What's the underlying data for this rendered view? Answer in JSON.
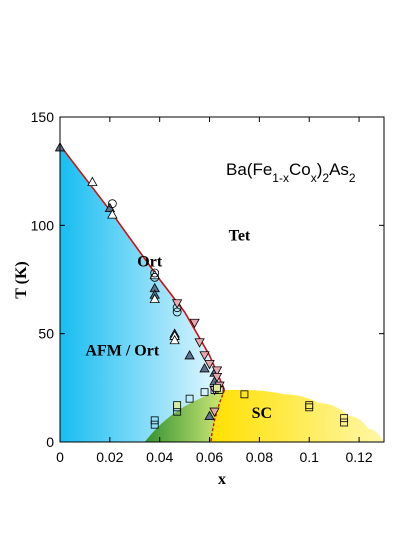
{
  "chart_data": {
    "type": "scatter",
    "title": "",
    "xlabel": "x",
    "ylabel": "T (K)",
    "xlim": [
      0,
      0.13
    ],
    "ylim": [
      0,
      150
    ],
    "x_ticks": [
      0,
      0.02,
      0.04,
      0.06,
      0.08,
      0.1,
      0.12
    ],
    "x_tick_labels": [
      "0",
      "0.02",
      "0.04",
      "0.06",
      "0.08",
      "0.1",
      "0.12"
    ],
    "y_ticks": [
      0,
      50,
      100,
      150
    ],
    "y_tick_labels": [
      "0",
      "50",
      "100",
      "150"
    ],
    "grid": false,
    "formula": {
      "parts": [
        {
          "t": "Ba(Fe",
          "s": "normal"
        },
        {
          "t": "1-x",
          "s": "sub"
        },
        {
          "t": "Co",
          "s": "normal"
        },
        {
          "t": "x",
          "s": "sub"
        },
        {
          "t": ")",
          "s": "normal"
        },
        {
          "t": "2",
          "s": "sub"
        },
        {
          "t": "As",
          "s": "normal"
        },
        {
          "t": "2",
          "s": "sub"
        }
      ]
    },
    "region_labels": [
      {
        "text": "Tet",
        "x": 0.072,
        "y": 93
      },
      {
        "text": "Ort",
        "x": 0.036,
        "y": 81
      },
      {
        "text": "AFM / Ort",
        "x": 0.025,
        "y": 40
      },
      {
        "text": "SC",
        "x": 0.081,
        "y": 11
      }
    ],
    "colors": {
      "afm": "#17bdf2",
      "afm_light": "#eaf9ff",
      "sc": "#ffe000",
      "sc_light": "#fff7a8",
      "coexist": "#2a8a1a",
      "coexist_light": "#cfe86a",
      "line": "#cc1111",
      "triangle_fill": "#5e7290",
      "triangle_down_fill": "#e8a8ae",
      "square_fill": "#d8eba0"
    },
    "structural_line": {
      "x": [
        0,
        0.02,
        0.04,
        0.05,
        0.06,
        0.066
      ],
      "y": [
        137,
        107,
        75,
        60,
        40,
        24
      ]
    },
    "sc_dome": {
      "x": [
        0.06,
        0.066,
        0.074,
        0.09,
        0.104,
        0.116,
        0.124,
        0.13
      ],
      "y": [
        0,
        24,
        24,
        22,
        18,
        12,
        6,
        0
      ]
    },
    "sc_boundary_dashed": {
      "x": [
        0.066,
        0.064,
        0.062,
        0.061,
        0.0605
      ],
      "y": [
        24,
        18,
        10,
        4,
        0
      ]
    },
    "series": [
      {
        "marker": "triangle-up-filled",
        "points": [
          [
            0,
            136
          ],
          [
            0.02,
            108
          ],
          [
            0.038,
            71
          ],
          [
            0.038,
            68
          ],
          [
            0.046,
            50
          ],
          [
            0.046,
            49
          ],
          [
            0.052,
            40
          ],
          [
            0.058,
            34
          ],
          [
            0.062,
            32
          ],
          [
            0.062,
            28
          ],
          [
            0.06,
            12
          ]
        ]
      },
      {
        "marker": "triangle-up-open",
        "points": [
          [
            0.013,
            120
          ],
          [
            0.021,
            105
          ],
          [
            0.038,
            77
          ],
          [
            0.038,
            66
          ],
          [
            0.046,
            49
          ],
          [
            0.046,
            47
          ]
        ]
      },
      {
        "marker": "circle-open",
        "points": [
          [
            0.021,
            110
          ],
          [
            0.038,
            78
          ],
          [
            0.038,
            76
          ],
          [
            0.047,
            62
          ],
          [
            0.047,
            60
          ]
        ]
      },
      {
        "marker": "triangle-down-filled",
        "points": [
          [
            0.047,
            64
          ],
          [
            0.054,
            55
          ],
          [
            0.056,
            46
          ],
          [
            0.058,
            40
          ],
          [
            0.06,
            36
          ],
          [
            0.063,
            33
          ],
          [
            0.063,
            30
          ],
          [
            0.064,
            26
          ],
          [
            0.062,
            24
          ],
          [
            0.062,
            14
          ]
        ]
      },
      {
        "marker": "square-open",
        "points": [
          [
            0.038,
            10
          ],
          [
            0.038,
            8
          ],
          [
            0.047,
            16
          ],
          [
            0.047,
            14
          ],
          [
            0.052,
            20
          ],
          [
            0.058,
            23
          ],
          [
            0.062,
            24
          ],
          [
            0.064,
            24
          ],
          [
            0.074,
            22
          ],
          [
            0.1,
            17
          ],
          [
            0.1,
            16
          ],
          [
            0.114,
            11
          ],
          [
            0.114,
            9
          ]
        ]
      },
      {
        "marker": "square-filled",
        "points": [
          [
            0.047,
            17
          ],
          [
            0.063,
            25
          ]
        ]
      }
    ]
  }
}
